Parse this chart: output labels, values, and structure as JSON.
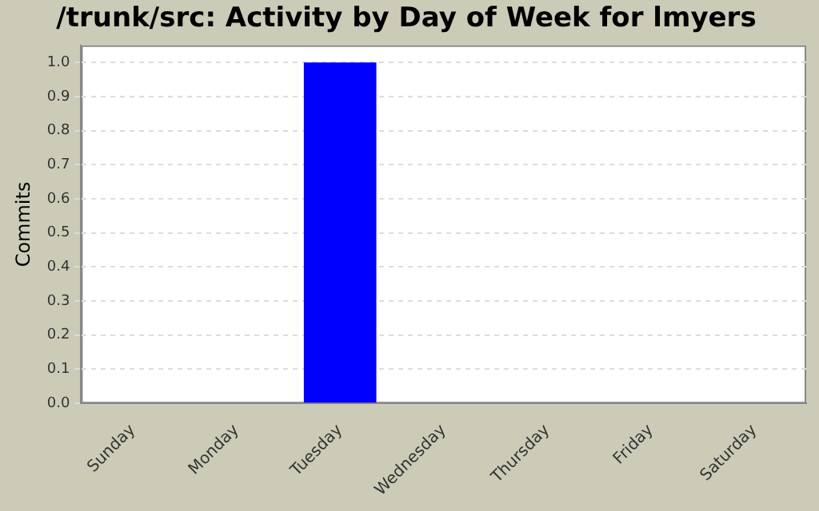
{
  "chart_data": {
    "type": "bar",
    "title": "/trunk/src: Activity by Day of Week for lmyers",
    "ylabel": "Commits",
    "categories": [
      "Sunday",
      "Monday",
      "Tuesday",
      "Wednesday",
      "Thursday",
      "Friday",
      "Saturday"
    ],
    "values": [
      0,
      0,
      1,
      0,
      0,
      0,
      0
    ],
    "color": "#0000ff",
    "ylim": [
      0,
      1.05
    ],
    "yticks": [
      {
        "value": 0,
        "label": "0.0"
      },
      {
        "value": 0.1,
        "label": "0.1"
      },
      {
        "value": 0.2,
        "label": "0.2"
      },
      {
        "value": 0.3,
        "label": "0.3"
      },
      {
        "value": 0.4,
        "label": "0.4"
      },
      {
        "value": 0.5,
        "label": "0.5"
      },
      {
        "value": 0.6,
        "label": "0.6"
      },
      {
        "value": 0.7,
        "label": "0.7"
      },
      {
        "value": 0.8,
        "label": "0.8"
      },
      {
        "value": 0.9,
        "label": "0.9"
      },
      {
        "value": 1,
        "label": "1.0"
      }
    ],
    "grid": "y"
  }
}
